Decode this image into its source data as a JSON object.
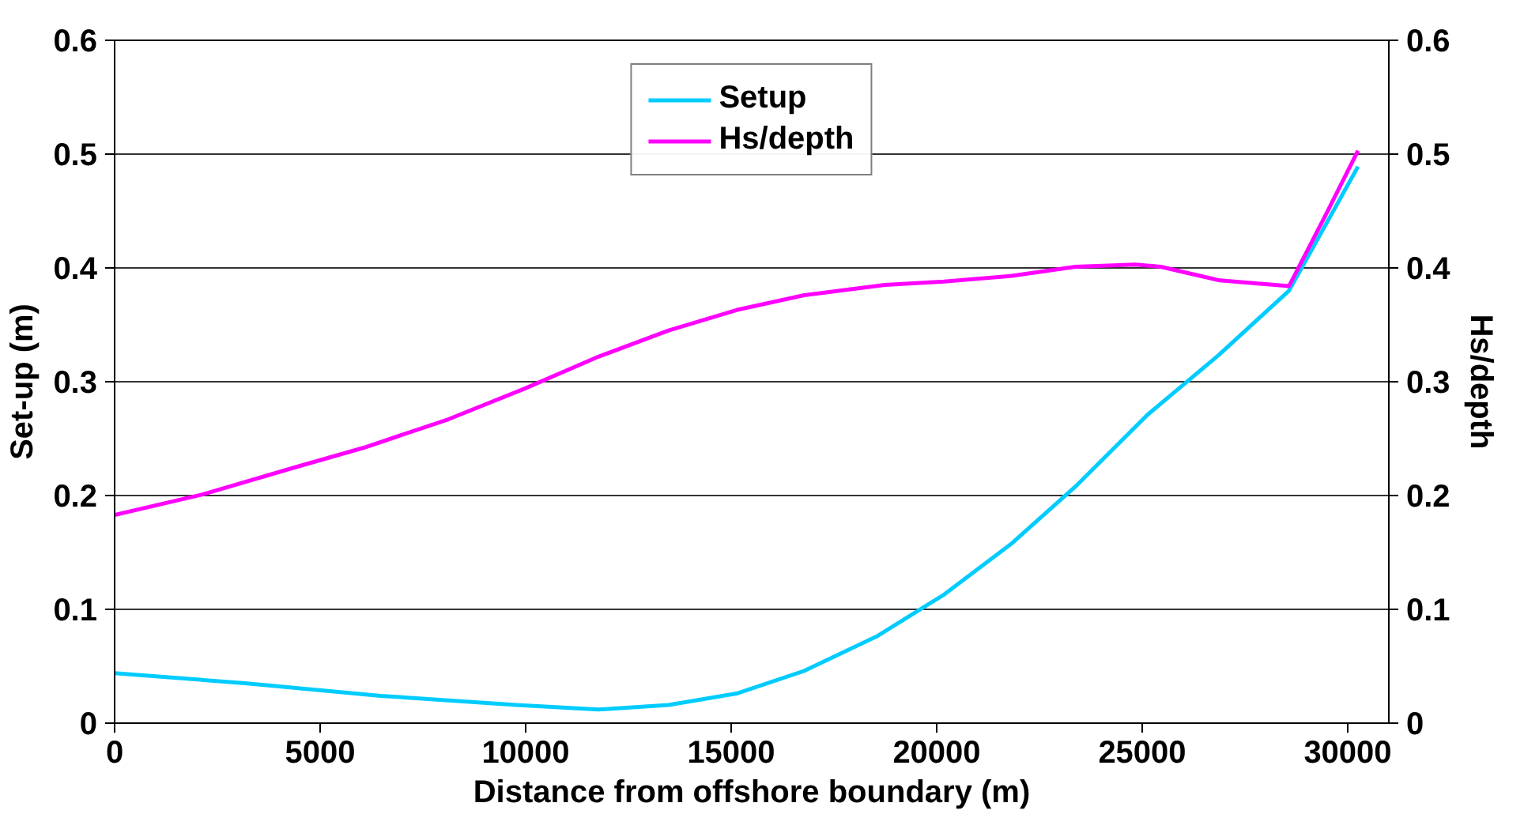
{
  "chart_data": {
    "type": "line",
    "xlabel": "Distance from offshore boundary (m)",
    "ylabel": "Set-up (m)",
    "y2label": "Hs/depth",
    "xlim": [
      0,
      31000
    ],
    "xticks": [
      0,
      5000,
      10000,
      15000,
      20000,
      25000,
      30000
    ],
    "ylim": [
      0,
      0.6
    ],
    "yticks": [
      0,
      0.1,
      0.2,
      0.3,
      0.4,
      0.5,
      0.6
    ],
    "y2lim": [
      0,
      0.6
    ],
    "y2ticks": [
      0,
      0.1,
      0.2,
      0.3,
      0.4,
      0.5,
      0.6
    ],
    "grid": "y",
    "legend": "top",
    "marker": "none",
    "line_style": "solid",
    "series": [
      {
        "name": "Setup",
        "color": "#00ccff",
        "x": [
          0,
          3175,
          6470,
          9770,
          11770,
          13480,
          15130,
          16780,
          18530,
          20180,
          21830,
          23380,
          25130,
          26880,
          28570,
          30250
        ],
        "values": [
          0.044,
          0.035,
          0.024,
          0.016,
          0.012,
          0.016,
          0.026,
          0.046,
          0.076,
          0.113,
          0.158,
          0.208,
          0.271,
          0.324,
          0.38,
          0.489
        ]
      },
      {
        "name": "Hs/depth",
        "color": "#ff00ff",
        "axis": "y2",
        "x": [
          0,
          2140,
          4410,
          6060,
          8120,
          9980,
          11770,
          13480,
          15130,
          16780,
          18740,
          20180,
          21830,
          23380,
          24830,
          25450,
          26890,
          28570,
          29470,
          30250
        ],
        "values": [
          0.183,
          0.201,
          0.225,
          0.242,
          0.267,
          0.294,
          0.322,
          0.345,
          0.363,
          0.376,
          0.385,
          0.388,
          0.393,
          0.401,
          0.403,
          0.401,
          0.389,
          0.384,
          0.447,
          0.503
        ]
      }
    ]
  }
}
